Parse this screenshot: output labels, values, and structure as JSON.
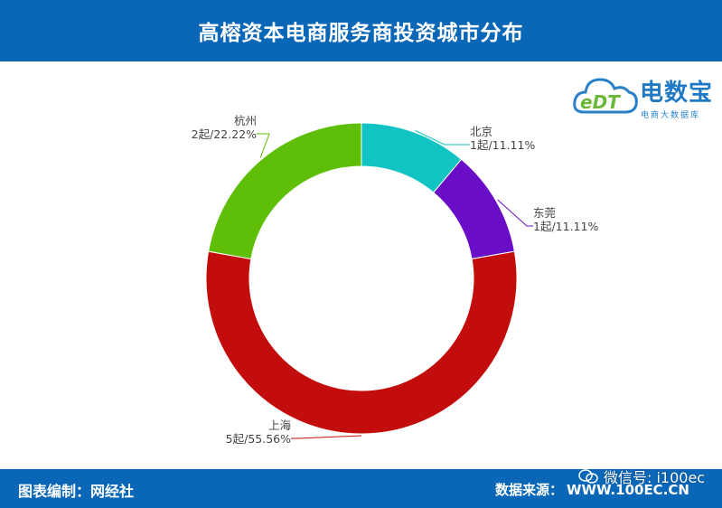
{
  "header": {
    "title": "高榕资本电商服务商投资城市分布"
  },
  "footer": {
    "credit": "图表编制：网经社",
    "source_label": "数据来源：",
    "source_url": "WWW.100EC.CN"
  },
  "watermark": {
    "wechat": "微信号: i100ec"
  },
  "logo": {
    "mark": "eDT",
    "brand": "电数宝",
    "tagline": "电商大数据库"
  },
  "colors": {
    "header": "#0a67b8",
    "北京": "#12c3c3",
    "东莞": "#6a0dc7",
    "上海": "#c30d0d",
    "杭州": "#5fbf08"
  },
  "chart_data": {
    "type": "pie",
    "donut": true,
    "unit": "起",
    "start": "top, clockwise",
    "slices": [
      {
        "name": "北京",
        "value": 1,
        "percent": 11.11,
        "label": "1起/11.11%"
      },
      {
        "name": "东莞",
        "value": 1,
        "percent": 11.11,
        "label": "1起/11.11%"
      },
      {
        "name": "上海",
        "value": 5,
        "percent": 55.56,
        "label": "5起/55.56%"
      },
      {
        "name": "杭州",
        "value": 2,
        "percent": 22.22,
        "label": "2起/22.22%"
      }
    ]
  }
}
